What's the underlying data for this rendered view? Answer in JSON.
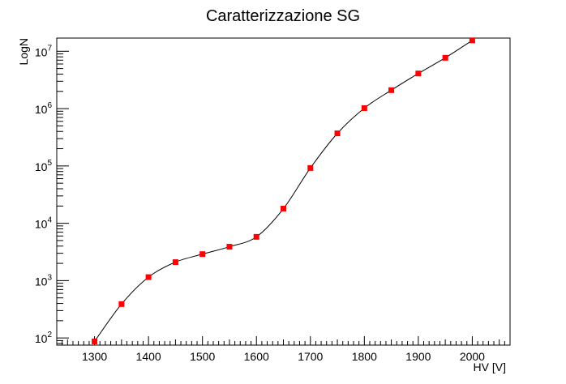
{
  "chart_data": {
    "type": "scatter",
    "title": "Caratterizzazione SG",
    "xlabel": "HV [V]",
    "ylabel": "LogN",
    "xlim": [
      1230,
      2070
    ],
    "ylim": [
      75,
      17000000
    ],
    "yscale": "log",
    "grid": false,
    "x_ticks": [
      1300,
      1400,
      1500,
      1600,
      1700,
      1800,
      1900,
      2000
    ],
    "y_tick_exponents": [
      2,
      3,
      4,
      5,
      6,
      7
    ],
    "y_tick_base": "10",
    "marker_color": "#ff0000",
    "line_color": "#000000",
    "series": [
      {
        "x": [
          1300,
          1350,
          1400,
          1450,
          1500,
          1550,
          1600,
          1650,
          1700,
          1750,
          1800,
          1850,
          1900,
          1950,
          2000
        ],
        "y": [
          87,
          390,
          1150,
          2100,
          2900,
          3900,
          5800,
          18000,
          92000,
          370000,
          1020000,
          2100000,
          4100000,
          7700000,
          15500000
        ]
      }
    ]
  }
}
